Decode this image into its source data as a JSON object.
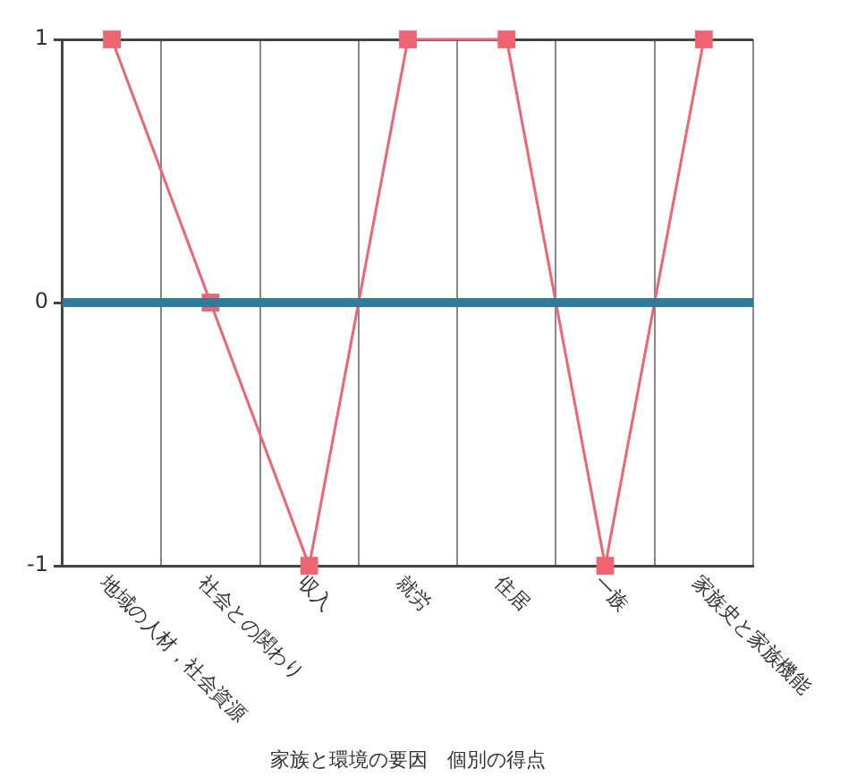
{
  "chart_data": {
    "type": "line",
    "xlabel": "家族と環境の要因　個別の得点",
    "categories": [
      "地域の人材，社会資源",
      "社会との関わり",
      "収入",
      "就労",
      "住居",
      "一族",
      "家族史と家族機能"
    ],
    "series": [
      {
        "color": "#ee6470",
        "values": [
          1,
          0,
          -1,
          1,
          1,
          -1,
          1
        ]
      }
    ],
    "ylim": [
      -1,
      1
    ],
    "yticks": [
      -1,
      0,
      1
    ],
    "grid": true,
    "marker": "square",
    "legend": false,
    "ref_lines": [
      {
        "axis": "y",
        "value": 0,
        "color": "#2a7d9c"
      }
    ]
  }
}
